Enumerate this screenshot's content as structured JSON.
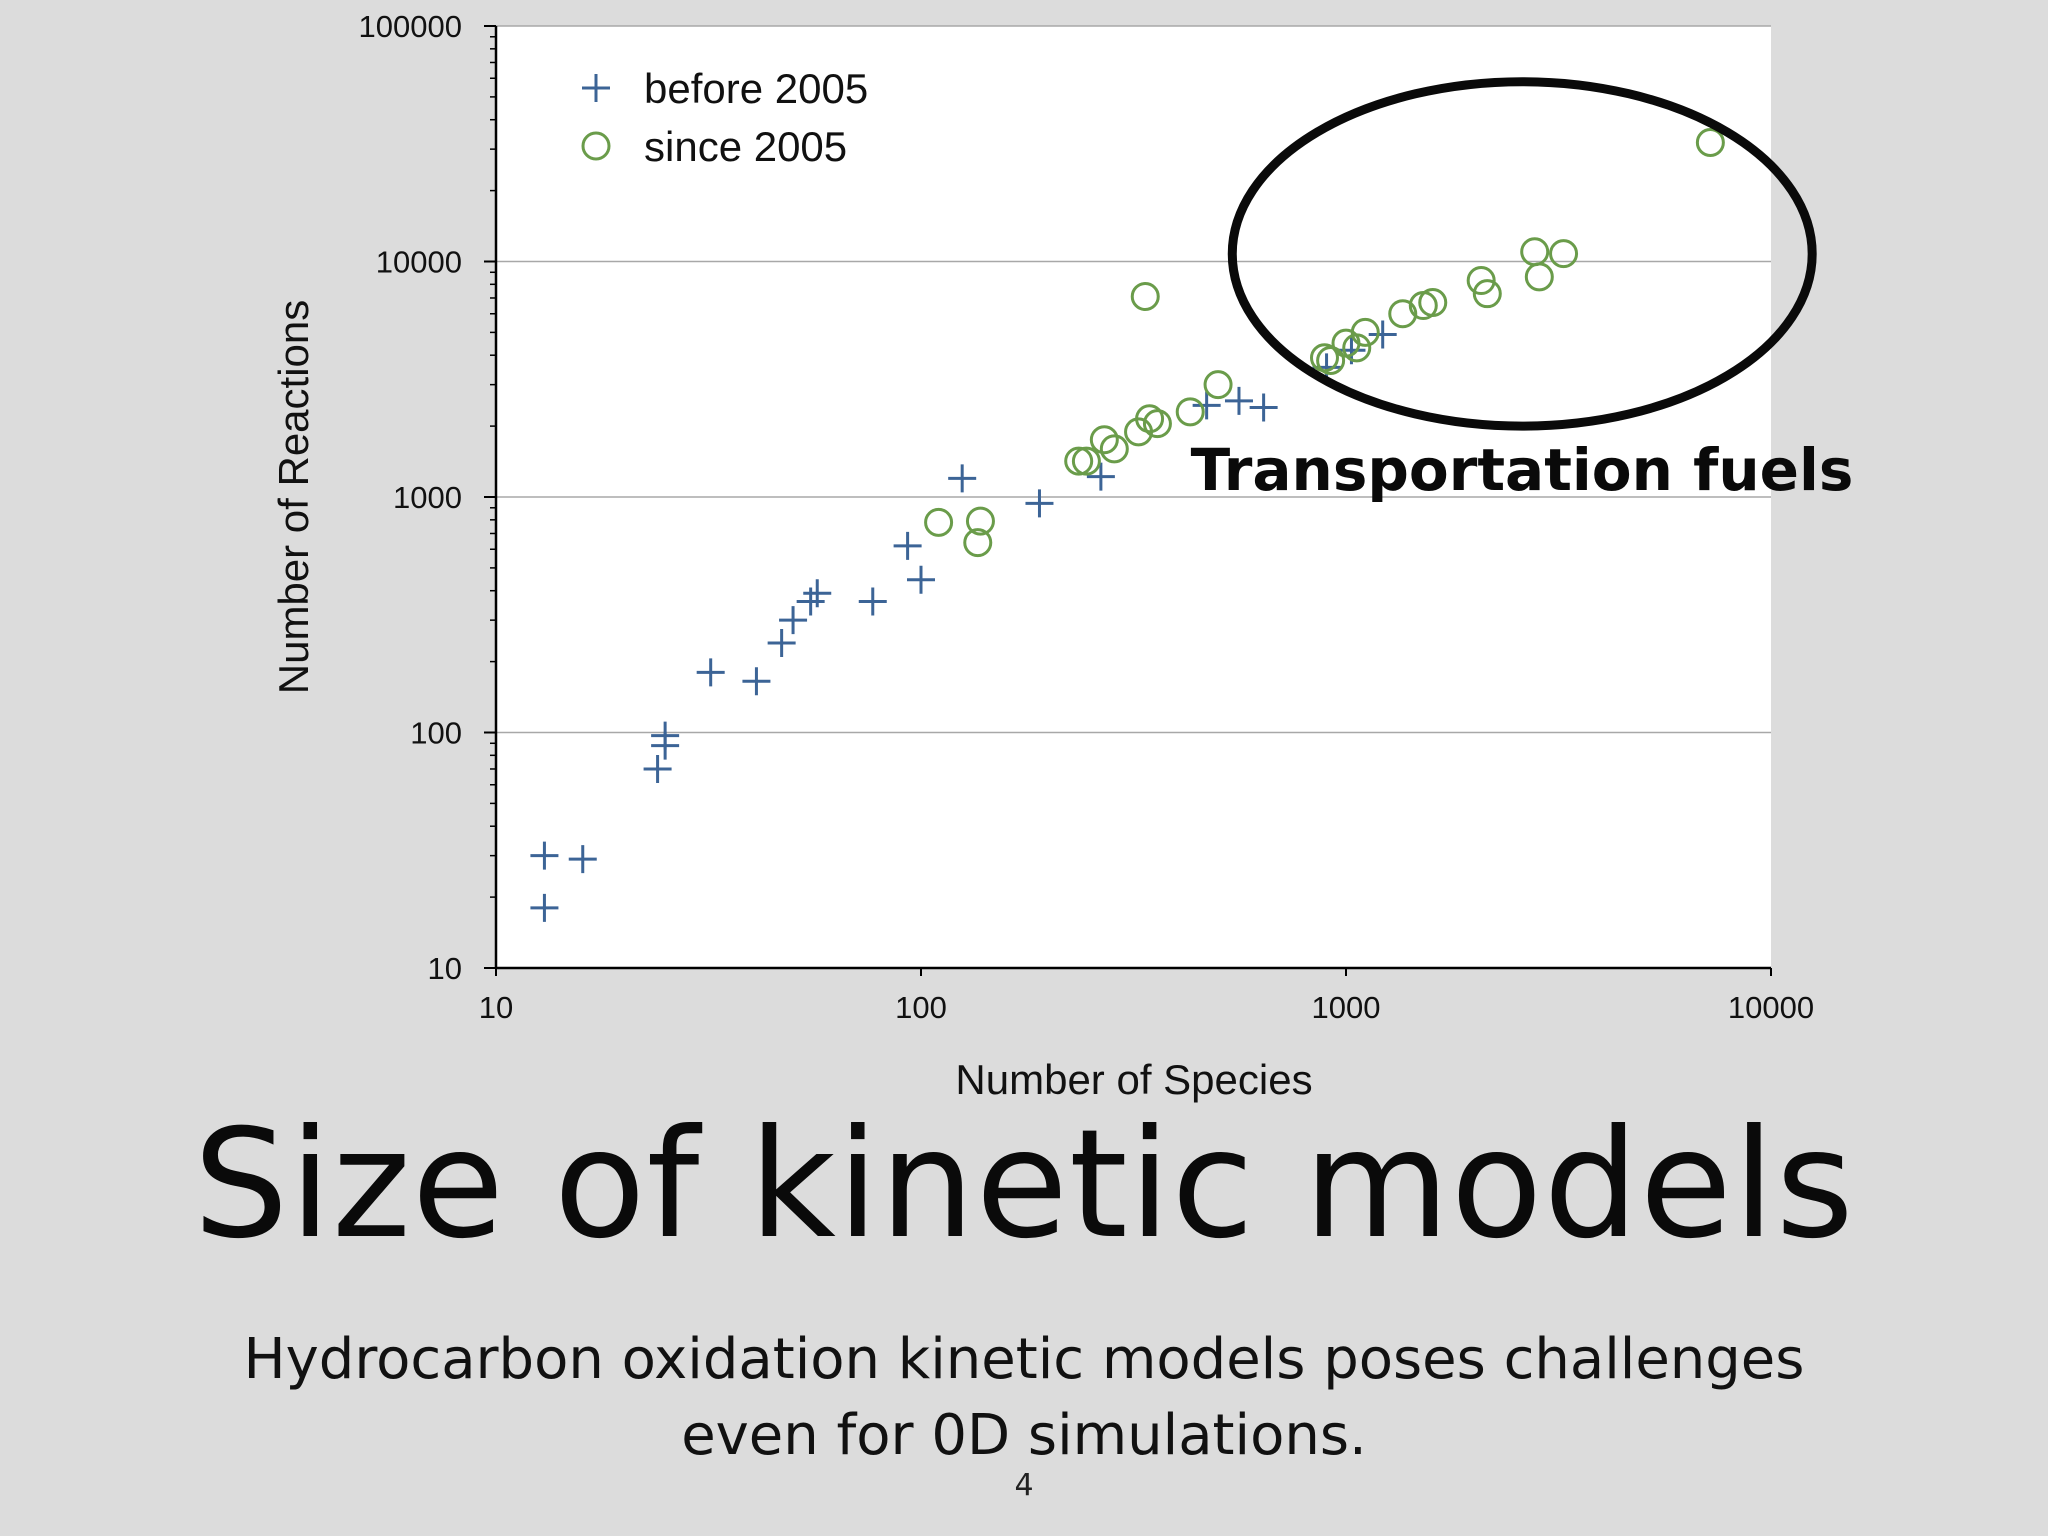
{
  "slide": {
    "title": "Size of kinetic models",
    "subtitle_line1": "Hydrocarbon oxidation kinetic models poses challenges",
    "subtitle_line2": "even for 0D simulations.",
    "page_number": "4"
  },
  "chart_data": {
    "type": "scatter",
    "xlabel": "Number of Species",
    "ylabel": "Number of Reactions",
    "xscale": "log",
    "yscale": "log",
    "xlim": [
      10,
      10000
    ],
    "ylim": [
      10,
      100000
    ],
    "x_ticks": [
      "10",
      "100",
      "1000",
      "10000"
    ],
    "y_ticks": [
      "10",
      "100",
      "1000",
      "10000",
      "100000"
    ],
    "grid": "horizontal major",
    "legend_position": "top-left",
    "annotation": {
      "text": "Transportation fuels",
      "ellipse_center": [
        2600,
        10600
      ],
      "x_range": [
        540,
        12500
      ],
      "y_range": [
        2000,
        58000
      ]
    },
    "series": [
      {
        "name": "before 2005",
        "marker": "plus",
        "color": "#3c6496",
        "points": [
          [
            13,
            30
          ],
          [
            16,
            29
          ],
          [
            13,
            18
          ],
          [
            24,
            70
          ],
          [
            25,
            88
          ],
          [
            25,
            97
          ],
          [
            32,
            180
          ],
          [
            41,
            165
          ],
          [
            47,
            240
          ],
          [
            50,
            300
          ],
          [
            55,
            360
          ],
          [
            57,
            390
          ],
          [
            77,
            360
          ],
          [
            93,
            620
          ],
          [
            100,
            445
          ],
          [
            125,
            1200
          ],
          [
            190,
            940
          ],
          [
            265,
            1220
          ],
          [
            470,
            2450
          ],
          [
            560,
            2560
          ],
          [
            640,
            2400
          ],
          [
            900,
            3550
          ],
          [
            1030,
            4200
          ],
          [
            1220,
            4900
          ]
        ]
      },
      {
        "name": "since 2005",
        "marker": "circle",
        "color": "#6a9c4a",
        "points": [
          [
            110,
            780
          ],
          [
            138,
            790
          ],
          [
            136,
            640
          ],
          [
            235,
            1420
          ],
          [
            245,
            1420
          ],
          [
            270,
            1750
          ],
          [
            285,
            1600
          ],
          [
            325,
            1890
          ],
          [
            337,
            7100
          ],
          [
            345,
            2150
          ],
          [
            360,
            2050
          ],
          [
            430,
            2300
          ],
          [
            500,
            3000
          ],
          [
            890,
            3900
          ],
          [
            920,
            3800
          ],
          [
            1000,
            4500
          ],
          [
            1060,
            4300
          ],
          [
            1110,
            5000
          ],
          [
            1360,
            6000
          ],
          [
            1520,
            6500
          ],
          [
            1600,
            6700
          ],
          [
            2080,
            8300
          ],
          [
            2150,
            7300
          ],
          [
            2780,
            11000
          ],
          [
            2850,
            8600
          ],
          [
            3250,
            10800
          ],
          [
            7200,
            32000
          ]
        ]
      }
    ]
  }
}
